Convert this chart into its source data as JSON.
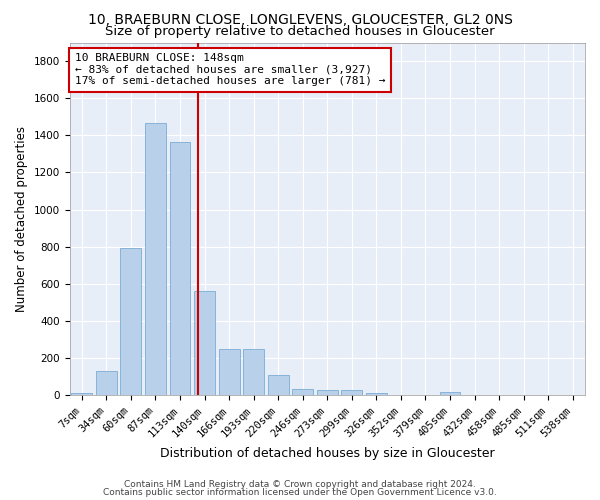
{
  "title": "10, BRAEBURN CLOSE, LONGLEVENS, GLOUCESTER, GL2 0NS",
  "subtitle": "Size of property relative to detached houses in Gloucester",
  "xlabel": "Distribution of detached houses by size in Gloucester",
  "ylabel": "Number of detached properties",
  "categories": [
    "7sqm",
    "34sqm",
    "60sqm",
    "87sqm",
    "113sqm",
    "140sqm",
    "166sqm",
    "193sqm",
    "220sqm",
    "246sqm",
    "273sqm",
    "299sqm",
    "326sqm",
    "352sqm",
    "379sqm",
    "405sqm",
    "432sqm",
    "458sqm",
    "485sqm",
    "511sqm",
    "538sqm"
  ],
  "values": [
    10,
    130,
    795,
    1465,
    1365,
    560,
    248,
    248,
    108,
    35,
    28,
    28,
    15,
    0,
    0,
    18,
    0,
    0,
    0,
    0,
    0
  ],
  "bar_color": "#b8d0ea",
  "bar_edge_color": "#7aacd4",
  "vline_x_index": 4.73,
  "vline_color": "#cc0000",
  "annotation_text_line1": "10 BRAEBURN CLOSE: 148sqm",
  "annotation_text_line2": "← 83% of detached houses are smaller (3,927)",
  "annotation_text_line3": "17% of semi-detached houses are larger (781) →",
  "ylim": [
    0,
    1900
  ],
  "yticks": [
    0,
    200,
    400,
    600,
    800,
    1000,
    1200,
    1400,
    1600,
    1800
  ],
  "background_color": "#e8eef8",
  "grid_color": "#ffffff",
  "footer_line1": "Contains HM Land Registry data © Crown copyright and database right 2024.",
  "footer_line2": "Contains public sector information licensed under the Open Government Licence v3.0.",
  "title_fontsize": 10,
  "subtitle_fontsize": 9.5,
  "xlabel_fontsize": 9,
  "ylabel_fontsize": 8.5,
  "tick_fontsize": 7.5,
  "footer_fontsize": 6.5,
  "annot_fontsize": 8
}
